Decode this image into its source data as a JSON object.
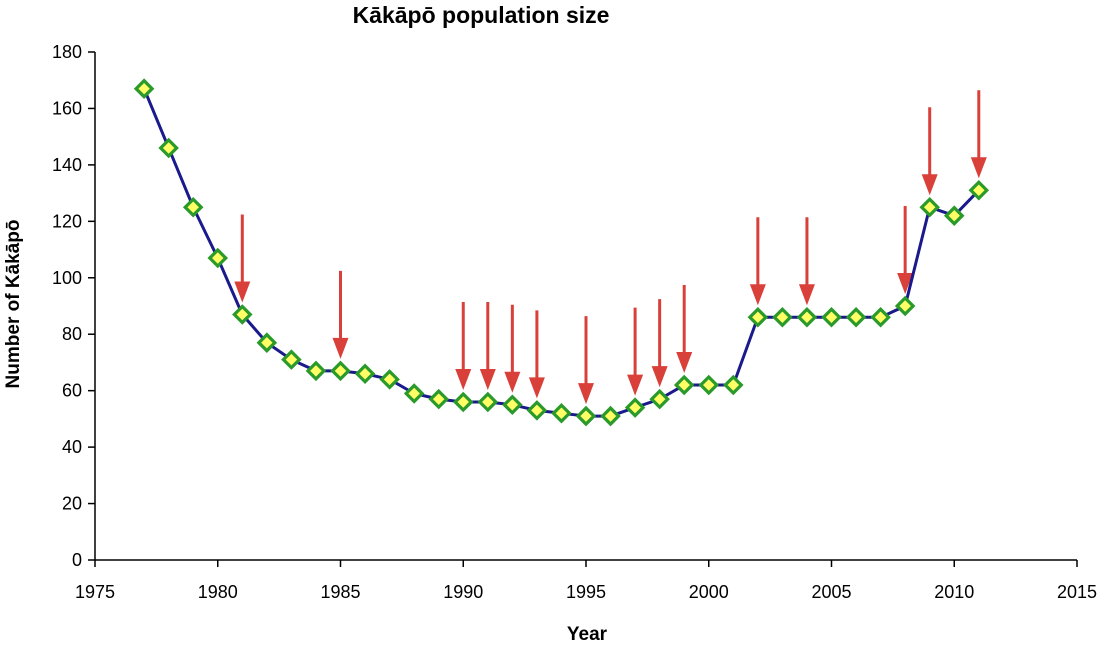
{
  "chart_data": {
    "type": "line",
    "title": "Kākāpō population size",
    "xlabel": "Year",
    "ylabel": "Number of Kākāpō",
    "xlim": [
      1975,
      2015
    ],
    "ylim": [
      0,
      180
    ],
    "x_ticks": [
      "1975",
      "1980",
      "1985",
      "1990",
      "1995",
      "2000",
      "2005",
      "2010",
      "2015"
    ],
    "y_ticks": [
      "0",
      "20",
      "40",
      "60",
      "80",
      "100",
      "120",
      "140",
      "160",
      "180"
    ],
    "grid": false,
    "legend": "none",
    "series": [
      {
        "x": [
          1977,
          1978,
          1979,
          1980,
          1981,
          1982,
          1983,
          1984,
          1985,
          1986,
          1987,
          1988,
          1989,
          1990,
          1991,
          1992,
          1993,
          1994,
          1995,
          1996,
          1997,
          1998,
          1999,
          2000,
          2001,
          2002,
          2003,
          2004,
          2005,
          2006,
          2007,
          2008,
          2009,
          2010,
          2011
        ],
        "values": [
          167,
          146,
          125,
          107,
          87,
          77,
          71,
          67,
          67,
          66,
          64,
          59,
          57,
          56,
          56,
          55,
          53,
          52,
          51,
          51,
          54,
          57,
          62,
          62,
          62,
          86,
          86,
          86,
          86,
          86,
          86,
          90,
          125,
          122,
          131
        ]
      }
    ],
    "annotations": {
      "type": "arrows",
      "x": [
        1981,
        1985,
        1990,
        1991,
        1992,
        1993,
        1995,
        1997,
        1998,
        1999,
        2002,
        2004,
        2008,
        2009,
        2011
      ]
    },
    "colors": {
      "line": "#1a1a8c",
      "marker_fill": "#ffff66",
      "marker_edge": "#2a9a2a",
      "arrow": "#d9403a",
      "axis": "#000000"
    }
  }
}
